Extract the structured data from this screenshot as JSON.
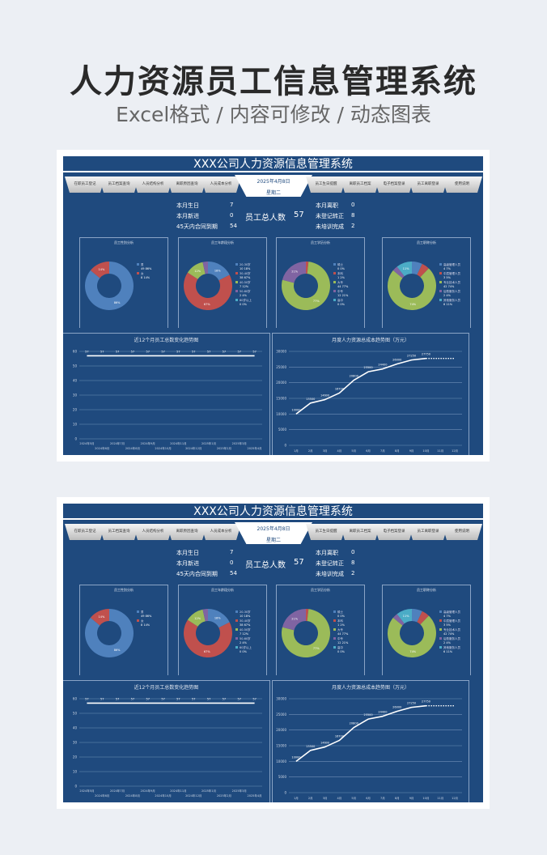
{
  "hero": {
    "title": "人力资源员工信息管理系统",
    "subtitle": "Excel格式 / 内容可修改 / 动态图表"
  },
  "dashboard": {
    "title": "XXX公司人力资源信息管理系统",
    "date": "2025年4月8日",
    "weekday": "星期二",
    "tabs_left": [
      "在职员工登记",
      "员工档案查询",
      "人员结构分析",
      "离职原因查询",
      "人员成本分析"
    ],
    "tabs_right": [
      "员工生日提醒",
      "离职员工档案",
      "电子档案登录",
      "员工离职登录",
      "使用说明"
    ],
    "stats": {
      "birthday_label": "本月生日",
      "birthday": "7",
      "new_label": "本月新进",
      "new": "0",
      "contract_label": "45天内合同到期",
      "contract": "54",
      "total_label": "员工总人数",
      "total": "57",
      "leave_label": "本月离职",
      "leave": "0",
      "unreg_label": "未登记转正",
      "unreg": "8",
      "training_label": "未培训完成",
      "training": "2"
    },
    "colors": {
      "bg": "#1f4a7e",
      "blue": "#4f81bd",
      "red": "#c0504d",
      "green": "#9bbb59",
      "purple": "#8064a2",
      "teal": "#4bacc6"
    }
  },
  "chart_data": [
    {
      "type": "pie",
      "title": "员工性别分析",
      "categories": [
        "男",
        "女"
      ],
      "values": [
        49,
        8
      ]
    },
    {
      "type": "pie",
      "title": "员工年龄段分析",
      "categories": [
        "20-30岁",
        "30-40岁",
        "40-50岁",
        "50-60岁",
        "60岁以上"
      ],
      "values": [
        10,
        38,
        7,
        2,
        0
      ]
    },
    {
      "type": "pie",
      "title": "员工学历分析",
      "categories": [
        "硕士",
        "本科",
        "大专",
        "中专",
        "高中"
      ],
      "values": [
        0,
        1,
        44,
        12,
        0
      ]
    },
    {
      "type": "pie",
      "title": "员工职称分析",
      "categories": [
        "高级管理人员",
        "中层管理人员",
        "专业技术人员",
        "后勤服务人员",
        "其他服务人员"
      ],
      "values": [
        4,
        3,
        42,
        2,
        6
      ]
    },
    {
      "type": "line",
      "title": "近12个月员工总数变化趋势图",
      "categories": [
        "2024年5月",
        "2024年6月",
        "2024年7月",
        "2024年8月",
        "2024年9月",
        "2024年10月",
        "2024年11月",
        "2024年12月",
        "2025年1月",
        "2025年2月",
        "2025年3月",
        "2025年4月"
      ],
      "values": [
        57,
        57,
        57,
        57,
        57,
        57,
        57,
        57,
        57,
        57,
        57,
        57
      ],
      "ylim": [
        0,
        60
      ],
      "yticks": [
        0,
        10,
        20,
        30,
        40,
        50,
        60
      ]
    },
    {
      "type": "line",
      "title": "月度人力资源总成本趋势图（万元）",
      "categories": [
        "1月",
        "2月",
        "3月",
        "4月",
        "5月",
        "6月",
        "7月",
        "8月",
        "9月",
        "10月",
        "11月",
        "12月"
      ],
      "values": [
        10000,
        13500,
        14600,
        16700,
        20800,
        23500,
        24400,
        26000,
        27250,
        27750,
        27750,
        27750
      ],
      "ylim": [
        0,
        30000
      ],
      "yticks": [
        0,
        5000,
        10000,
        15000,
        20000,
        25000,
        30000
      ]
    }
  ]
}
